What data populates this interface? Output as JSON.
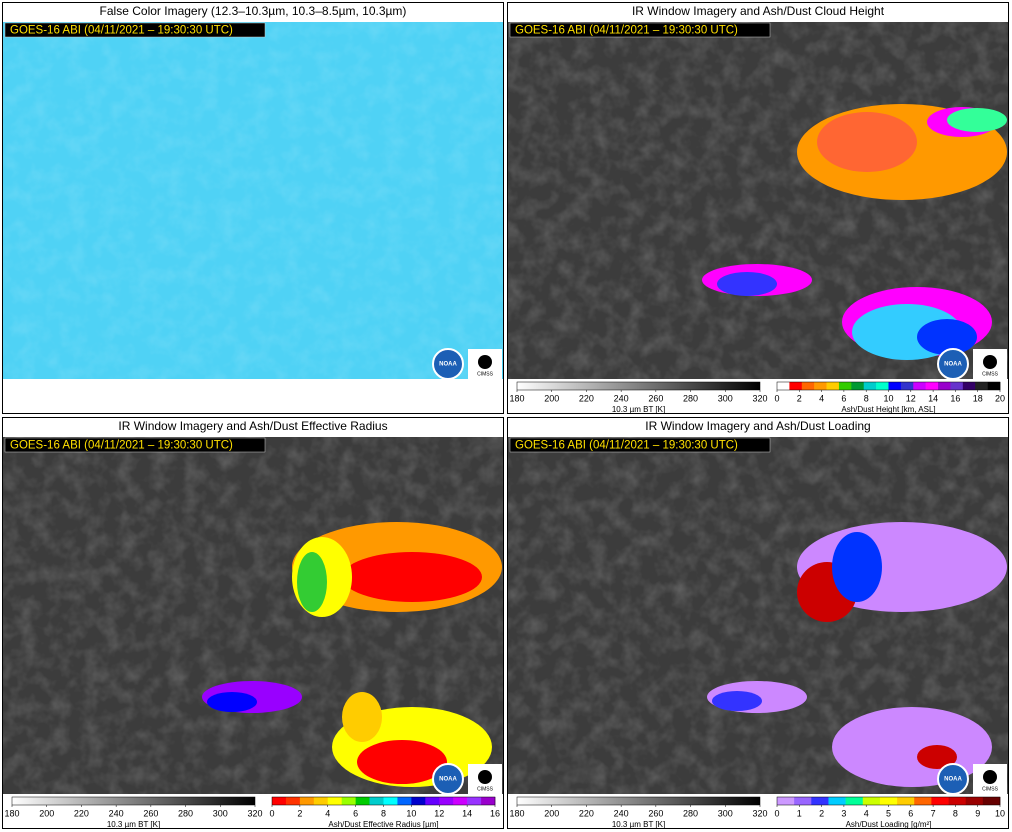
{
  "panels": [
    {
      "title": "False Color Imagery (12.3–10.3µm, 10.3–8.5µm, 10.3µm)",
      "timestamp": "GOES-16 ABI (04/11/2021 – 19:30:30 UTC)"
    },
    {
      "title": "IR Window Imagery and Ash/Dust Cloud Height",
      "timestamp": "GOES-16 ABI (04/11/2021 – 19:30:30 UTC)",
      "colorbars": [
        {
          "label": "10.3 µm BT [K]",
          "ticks": [
            180,
            200,
            220,
            240,
            260,
            280,
            300,
            320
          ]
        },
        {
          "label": "Ash/Dust Height [km, ASL]",
          "ticks": [
            0,
            2,
            4,
            6,
            8,
            10,
            12,
            14,
            16,
            18,
            20
          ]
        }
      ]
    },
    {
      "title": "IR Window Imagery and Ash/Dust Effective Radius",
      "timestamp": "GOES-16 ABI (04/11/2021 – 19:30:30 UTC)",
      "colorbars": [
        {
          "label": "10.3 µm BT [K]",
          "ticks": [
            180,
            200,
            220,
            240,
            260,
            280,
            300,
            320
          ]
        },
        {
          "label": "Ash/Dust Effective Radius [µm]",
          "ticks": [
            0,
            2,
            4,
            6,
            8,
            10,
            12,
            14,
            16
          ]
        }
      ]
    },
    {
      "title": "IR Window Imagery and Ash/Dust Loading",
      "timestamp": "GOES-16 ABI (04/11/2021 – 19:30:30 UTC)",
      "colorbars": [
        {
          "label": "10.3 µm BT [K]",
          "ticks": [
            180,
            200,
            220,
            240,
            260,
            280,
            300,
            320
          ]
        },
        {
          "label": "Ash/Dust Loading [g/m²]",
          "ticks": [
            0,
            1,
            2,
            3,
            4,
            5,
            6,
            7,
            8,
            9,
            10
          ]
        }
      ]
    }
  ],
  "logos": {
    "noaa": "NOAA",
    "cimss": "CIMSS"
  }
}
